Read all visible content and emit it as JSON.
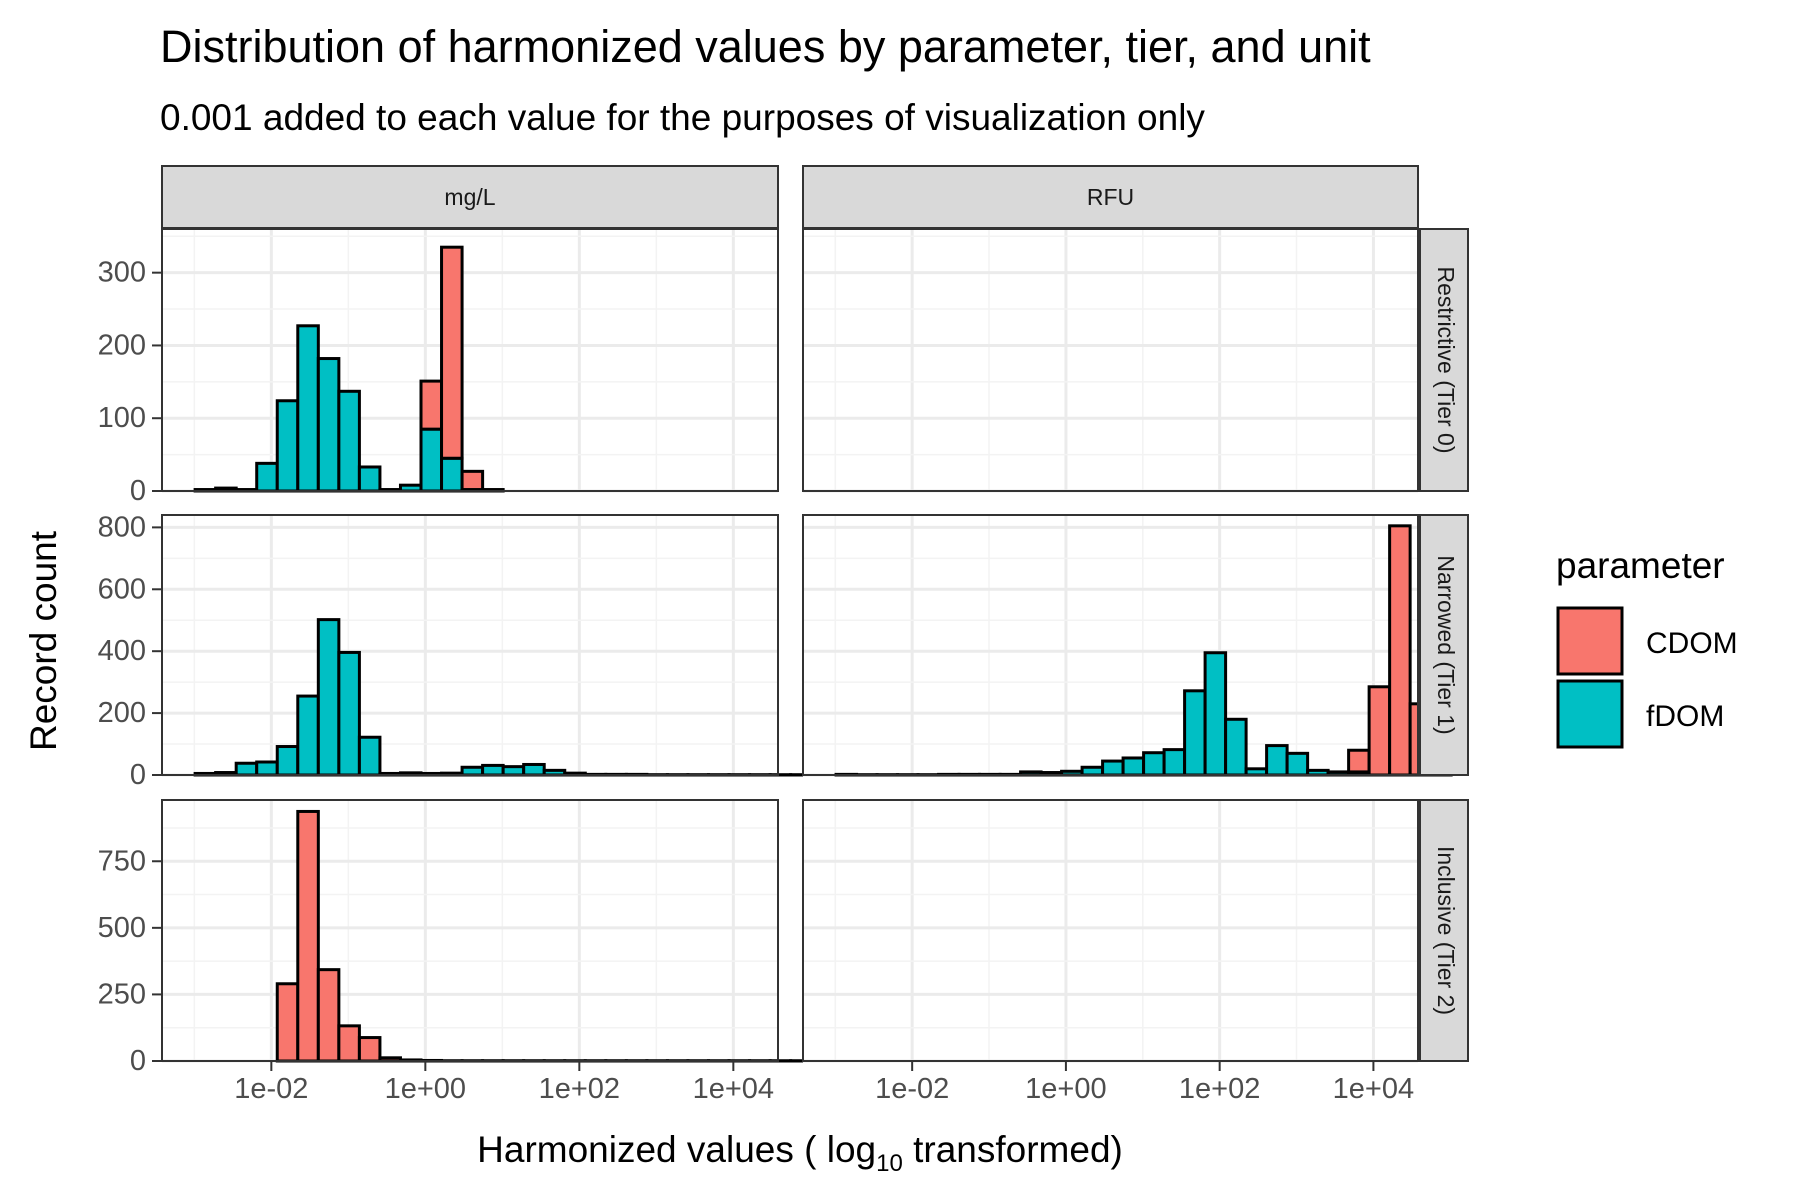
{
  "title": "Distribution of harmonized values by parameter, tier, and unit",
  "subtitle": "0.001 added to each value for the purposes of visualization only",
  "legend": {
    "title": "parameter",
    "position": "right",
    "items": [
      {
        "label": "CDOM",
        "color": "#F8766D"
      },
      {
        "label": "fDOM",
        "color": "#00BFC4"
      }
    ]
  },
  "chart_data": {
    "type": "bar",
    "subtype": "stacked histogram, faceted",
    "title": "Distribution of harmonized values by parameter, tier, and unit",
    "subtitle": "0.001 added to each value for the purposes of visualization only",
    "xlabel": "Harmonized values ( log10  transformed)",
    "xlabel_parts": {
      "prefix": "Harmonized values ( log",
      "subscript": "10",
      "suffix": " transformed)"
    },
    "ylabel": "Record count",
    "x_scale": "log10",
    "x_range_log10": [
      -3.42,
      4.58
    ],
    "x_ticks": [
      {
        "log10": -2,
        "label": "1e-02"
      },
      {
        "log10": 0,
        "label": "1e+00"
      },
      {
        "log10": 2,
        "label": "1e+02"
      },
      {
        "log10": 4,
        "label": "1e+04"
      }
    ],
    "bin_width_log10": 0.2667,
    "grid": true,
    "columns": [
      "mg/L",
      "RFU"
    ],
    "rows": [
      {
        "label": "Restrictive (Tier 0)",
        "ylim": [
          0,
          360
        ],
        "yticks": [
          0,
          100,
          200,
          300
        ]
      },
      {
        "label": "Narrowed (Tier 1)",
        "ylim": [
          0,
          840
        ],
        "yticks": [
          0,
          200,
          400,
          600,
          800
        ]
      },
      {
        "label": "Inclusive (Tier 2)",
        "ylim": [
          0,
          980
        ],
        "yticks": [
          0,
          250,
          500,
          750
        ]
      }
    ],
    "panels": [
      {
        "row": 0,
        "col": 0,
        "series": [
          {
            "name": "fDOM",
            "bin_start_log10": -2.99,
            "counts": [
              2,
              4,
              2,
              38,
              124,
              227,
              182,
              137,
              33,
              2,
              8,
              85,
              45,
              2,
              0,
              0,
              0,
              0,
              0,
              0,
              0,
              0,
              0,
              0,
              0,
              0,
              0,
              0,
              0,
              0
            ]
          },
          {
            "name": "CDOM",
            "bin_start_log10": -2.99,
            "counts": [
              0,
              0,
              0,
              0,
              0,
              0,
              0,
              0,
              0,
              0,
              0,
              66,
              290,
              25,
              2,
              0,
              0,
              0,
              0,
              0,
              0,
              0,
              0,
              0,
              0,
              0,
              0,
              0,
              0,
              0
            ]
          }
        ]
      },
      {
        "row": 0,
        "col": 1,
        "series": []
      },
      {
        "row": 1,
        "col": 0,
        "series": [
          {
            "name": "fDOM",
            "bin_start_log10": -2.99,
            "counts": [
              5,
              8,
              38,
              42,
              92,
              255,
              502,
              396,
              122,
              5,
              7,
              5,
              6,
              25,
              31,
              27,
              34,
              15,
              6,
              2,
              2,
              2,
              1,
              1,
              1,
              1,
              1,
              1,
              1,
              1
            ]
          }
        ]
      },
      {
        "row": 1,
        "col": 1,
        "series": [
          {
            "name": "fDOM",
            "bin_start_log10": -2.99,
            "counts": [
              2,
              1,
              1,
              1,
              1,
              2,
              2,
              2,
              2,
              10,
              8,
              12,
              25,
              45,
              55,
              72,
              82,
              272,
              395,
              180,
              20,
              95,
              70,
              15,
              10,
              10,
              0,
              0,
              0,
              0
            ]
          },
          {
            "name": "CDOM",
            "bin_start_log10": -2.99,
            "counts": [
              0,
              0,
              0,
              0,
              0,
              0,
              0,
              0,
              0,
              0,
              0,
              0,
              0,
              0,
              0,
              0,
              0,
              0,
              0,
              0,
              0,
              0,
              0,
              0,
              0,
              70,
              285,
              805,
              230,
              5
            ]
          }
        ]
      },
      {
        "row": 2,
        "col": 0,
        "series": [
          {
            "name": "CDOM",
            "bin_start_log10": -2.99,
            "counts": [
              0,
              0,
              0,
              0,
              290,
              937,
              343,
              132,
              88,
              12,
              4,
              2,
              1,
              1,
              1,
              1,
              1,
              1,
              1,
              1,
              1,
              1,
              1,
              1,
              1,
              1,
              1,
              1,
              1,
              1
            ]
          }
        ]
      },
      {
        "row": 2,
        "col": 1,
        "series": []
      }
    ]
  }
}
